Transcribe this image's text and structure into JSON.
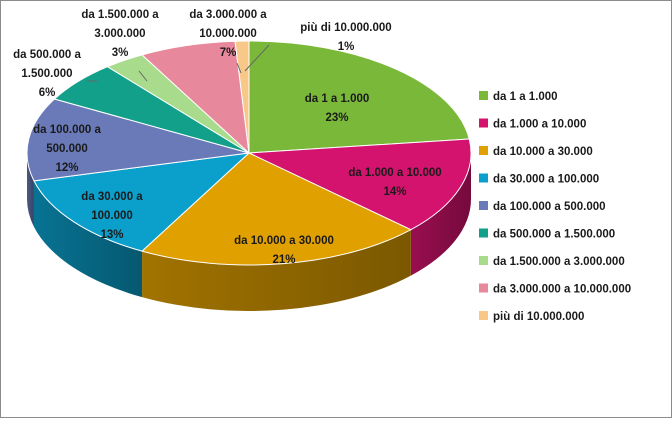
{
  "chart_data": {
    "type": "pie",
    "title": "",
    "legend_position": "right",
    "slices": [
      {
        "label": "da 1 a 1.000",
        "value": 23,
        "value_label": "23%",
        "color": "#7ab83a"
      },
      {
        "label": "da 1.000 a 10.000",
        "value": 14,
        "value_label": "14%",
        "color": "#d4136e"
      },
      {
        "label": "da 10.000 a 30.000",
        "value": 21,
        "value_label": "21%",
        "color": "#e0a000"
      },
      {
        "label": "da 30.000 a 100.000",
        "value": 13,
        "value_label": "13%",
        "color": "#0ba0cc"
      },
      {
        "label": "da 100.000 a 500.000",
        "value": 12,
        "value_label": "12%",
        "color": "#6a7ab8"
      },
      {
        "label": "da 500.000 a 1.500.000",
        "value": 6,
        "value_label": "6%",
        "color": "#13a08a"
      },
      {
        "label": "da 1.500.000 a 3.000.000",
        "value": 3,
        "value_label": "3%",
        "color": "#a8dc8c"
      },
      {
        "label": "da 3.000.000 a 10.000.000",
        "value": 7,
        "value_label": "7%",
        "color": "#e8889c"
      },
      {
        "label": "più di 10.000.000",
        "value": 1,
        "value_label": "1%",
        "color": "#f8c888"
      }
    ]
  }
}
